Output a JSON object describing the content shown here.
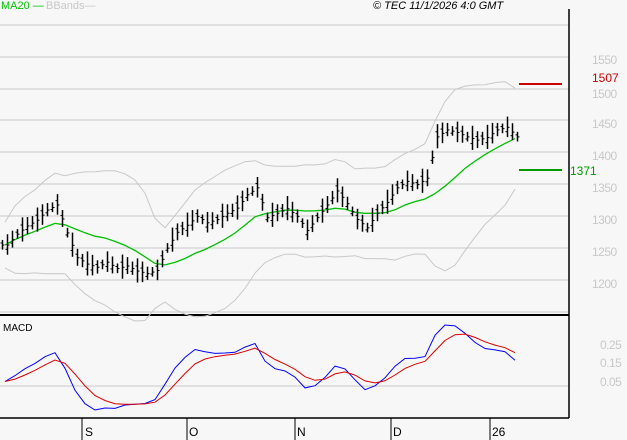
{
  "legend": {
    "ma": "MA20",
    "bbands": "BBands",
    "ma_color": "#00c000",
    "bb_color": "#c8c8c8"
  },
  "copyright": "© TEC 11/1/2026 4:0 GMT",
  "levels": {
    "resistance": "1507",
    "support": "1371",
    "resistance_color": "#cc0000",
    "support_color": "#009900"
  },
  "macd_label": "MACD",
  "chart_data": {
    "type": "ohlc",
    "title": "",
    "xlabel": "",
    "ylabel": "",
    "ylim": [
      1170,
      1590
    ],
    "yticks": [
      "1550",
      "1500",
      "1450",
      "1400",
      "1350",
      "1300",
      "1250",
      "1200"
    ],
    "xticks": [
      "S",
      "O",
      "N",
      "D",
      "26"
    ],
    "closes": [
      1255,
      1272,
      1285,
      1294,
      1310,
      1318,
      1274,
      1235,
      1225,
      1220,
      1228,
      1218,
      1222,
      1214,
      1210,
      1215,
      1250,
      1275,
      1286,
      1300,
      1290,
      1295,
      1305,
      1313,
      1334,
      1345,
      1298,
      1305,
      1312,
      1300,
      1278,
      1298,
      1318,
      1340,
      1320,
      1295,
      1282,
      1305,
      1322,
      1345,
      1355,
      1350,
      1360,
      1425,
      1436,
      1432,
      1425,
      1420,
      1424,
      1436,
      1440,
      1425
    ],
    "indicators": [
      "MA20",
      "BBands"
    ],
    "macd": {
      "yticks": [
        "0.25",
        "0.15",
        "0.05"
      ],
      "series": [
        "MACD",
        "Signal"
      ],
      "colors": [
        "#0000ff",
        "#dd0000"
      ]
    }
  }
}
